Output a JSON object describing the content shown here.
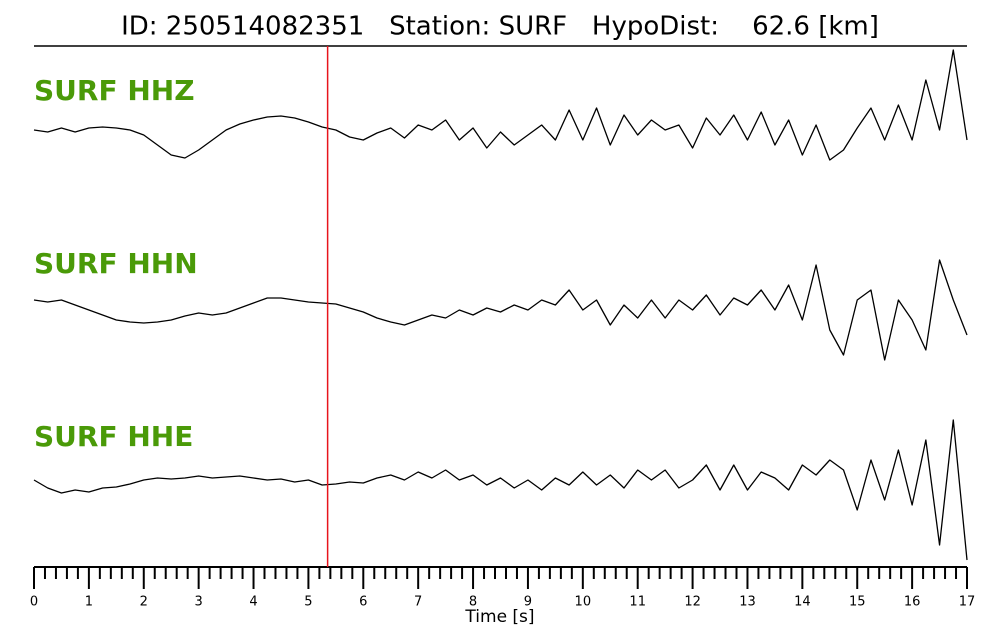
{
  "chart_data": {
    "type": "seismogram",
    "title": "ID: 250514082351   Station: SURF   HypoDist:    62.6 [km]",
    "xlabel": "Time [s]",
    "xlim": [
      0,
      17
    ],
    "xticks": [
      0,
      1,
      2,
      3,
      4,
      5,
      6,
      7,
      8,
      9,
      10,
      11,
      12,
      13,
      14,
      15,
      16,
      17
    ],
    "xminorticks": [
      0.2,
      0.4,
      0.6,
      0.8,
      1.2,
      1.4,
      1.6,
      1.8,
      2.2,
      2.4,
      2.6,
      2.8,
      3.2,
      3.4,
      3.6,
      3.8,
      4.2,
      4.4,
      4.6,
      4.8,
      5.2,
      5.4,
      5.6,
      5.8,
      6.2,
      6.4,
      6.6,
      6.8,
      7.2,
      7.4,
      7.6,
      7.8,
      8.2,
      8.4,
      8.6,
      8.8,
      9.2,
      9.4,
      9.6,
      9.8,
      10.2,
      10.4,
      10.6,
      10.8,
      11.2,
      11.4,
      11.6,
      11.8,
      12.2,
      12.4,
      12.6,
      12.8,
      13.2,
      13.4,
      13.6,
      13.8,
      14.2,
      14.4,
      14.6,
      14.8,
      15.2,
      15.4,
      15.6,
      15.8,
      16.2,
      16.4,
      16.6,
      16.8
    ],
    "ylim": [
      -9,
      9
    ],
    "label_color": "#4a9a08",
    "pick": {
      "x": 5.35,
      "color": "#e8141c"
    },
    "x": [
      0,
      0.25,
      0.5,
      0.75,
      1,
      1.25,
      1.5,
      1.75,
      2,
      2.25,
      2.5,
      2.75,
      3,
      3.25,
      3.5,
      3.75,
      4,
      4.25,
      4.5,
      4.75,
      5,
      5.25,
      5.5,
      5.75,
      6,
      6.25,
      6.5,
      6.75,
      7,
      7.25,
      7.5,
      7.75,
      8,
      8.25,
      8.5,
      8.75,
      9,
      9.25,
      9.5,
      9.75,
      10,
      10.25,
      10.5,
      10.75,
      11,
      11.25,
      11.5,
      11.75,
      12,
      12.25,
      12.5,
      12.75,
      13,
      13.25,
      13.5,
      13.75,
      14,
      14.25,
      14.5,
      14.75,
      15,
      15.25,
      15.5,
      15.75,
      16,
      16.25,
      16.5,
      16.75,
      17
    ],
    "series": [
      {
        "name": "SURF HHZ",
        "color": "#000000",
        "values": [
          0,
          -0.2,
          0.2,
          -0.2,
          0.2,
          0.3,
          0.2,
          0,
          -0.5,
          -1.5,
          -2.5,
          -2.8,
          -2,
          -1,
          0,
          0.6,
          1,
          1.3,
          1.4,
          1.2,
          0.8,
          0.3,
          0,
          -0.7,
          -1,
          -0.3,
          0.2,
          -0.8,
          0.5,
          0,
          1,
          -1,
          0.2,
          -1.8,
          -0.2,
          -1.5,
          -0.5,
          0.5,
          -1,
          2,
          -1,
          2.2,
          -1.5,
          1.5,
          -0.5,
          1,
          0,
          0.5,
          -1.8,
          1.2,
          -0.5,
          1.5,
          -1,
          1.8,
          -1.5,
          1,
          -2.5,
          0.5,
          -3,
          -2,
          0.2,
          2.2,
          -1,
          2.5,
          -1,
          5,
          0,
          8,
          -1
        ]
      },
      {
        "name": "SURF HHN",
        "color": "#000000",
        "values": [
          0,
          -0.2,
          0,
          -0.5,
          -1,
          -1.5,
          -2,
          -2.2,
          -2.3,
          -2.2,
          -2,
          -1.6,
          -1.3,
          -1.5,
          -1.3,
          -0.8,
          -0.3,
          0.2,
          0.2,
          0,
          -0.2,
          -0.3,
          -0.4,
          -0.8,
          -1.2,
          -1.8,
          -2.2,
          -2.5,
          -2,
          -1.5,
          -1.8,
          -1,
          -1.5,
          -0.8,
          -1.2,
          -0.5,
          -1,
          0,
          -0.5,
          1,
          -1,
          0,
          -2.5,
          -0.5,
          -1.8,
          0,
          -1.8,
          0,
          -1,
          0.5,
          -1.5,
          0.2,
          -0.5,
          1,
          -1,
          1.5,
          -2,
          3.5,
          -3,
          -5.5,
          0,
          1,
          -6,
          0,
          -2,
          -5,
          4,
          0,
          -3.5
        ]
      },
      {
        "name": "SURF HHE",
        "color": "#000000",
        "values": [
          0.4,
          -0.4,
          -0.9,
          -0.6,
          -0.8,
          -0.4,
          -0.3,
          0,
          0.4,
          0.6,
          0.5,
          0.6,
          0.8,
          0.6,
          0.7,
          0.8,
          0.6,
          0.4,
          0.5,
          0.2,
          0.4,
          -0.1,
          0,
          0.2,
          0.1,
          0.6,
          0.9,
          0.4,
          1.2,
          0.6,
          1.4,
          0.4,
          0.9,
          -0.1,
          0.6,
          -0.4,
          0.4,
          -0.6,
          0.6,
          -0.1,
          1.2,
          -0.1,
          0.9,
          -0.4,
          1.4,
          0.4,
          1.4,
          -0.4,
          0.4,
          1.9,
          -0.6,
          1.9,
          -0.6,
          1.2,
          0.6,
          -0.6,
          1.9,
          0.9,
          2.4,
          1.4,
          -2.6,
          2.4,
          -1.6,
          3.4,
          -2.1,
          4.4,
          -6.1,
          6.4,
          -7.6
        ]
      }
    ]
  }
}
